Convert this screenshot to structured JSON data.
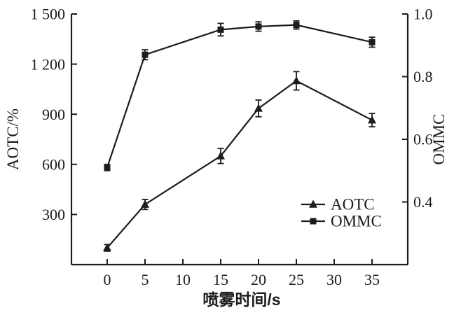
{
  "figure": {
    "background": "#ffffff",
    "ink_color": "#1c1c1c"
  },
  "chart_data": {
    "type": "line",
    "title": "",
    "xlabel": "喷雾时间/s",
    "ylabel_left": "AOTC/%",
    "ylabel_right": "OMMC",
    "x": [
      0,
      5,
      15,
      20,
      25,
      35
    ],
    "x_ticks": [
      0,
      5,
      10,
      15,
      20,
      25,
      30,
      35
    ],
    "x_tick_labels": [
      "0",
      "5",
      "10",
      "15",
      "20",
      "25",
      "30",
      "35"
    ],
    "xlim": [
      -4.72,
      39.72
    ],
    "left_axis": {
      "range": [
        0,
        1500
      ],
      "ticks": [
        300,
        600,
        900,
        1200,
        1500
      ],
      "tick_labels": [
        "300",
        "600",
        "900",
        "1 200",
        "1 500"
      ]
    },
    "right_axis": {
      "range": [
        0.2,
        1.0
      ],
      "ticks": [
        0.4,
        0.6,
        0.8,
        1.0
      ],
      "tick_labels": [
        "0.4",
        "0.6",
        "0.8",
        "1.0"
      ]
    },
    "grid": false,
    "series": [
      {
        "name": "AOTC",
        "axis": "left",
        "marker": "triangle",
        "values": [
          100,
          360,
          650,
          935,
          1100,
          865
        ],
        "errors": [
          20,
          30,
          45,
          50,
          55,
          40
        ]
      },
      {
        "name": "OMMC",
        "axis": "right",
        "marker": "square",
        "values": [
          0.51,
          0.87,
          0.95,
          0.96,
          0.965,
          0.91
        ],
        "errors": [
          0.01,
          0.016,
          0.02,
          0.015,
          0.013,
          0.016
        ]
      }
    ],
    "legend": {
      "position": "inside-lower-right",
      "entries": [
        "AOTC",
        "OMMC"
      ]
    }
  }
}
